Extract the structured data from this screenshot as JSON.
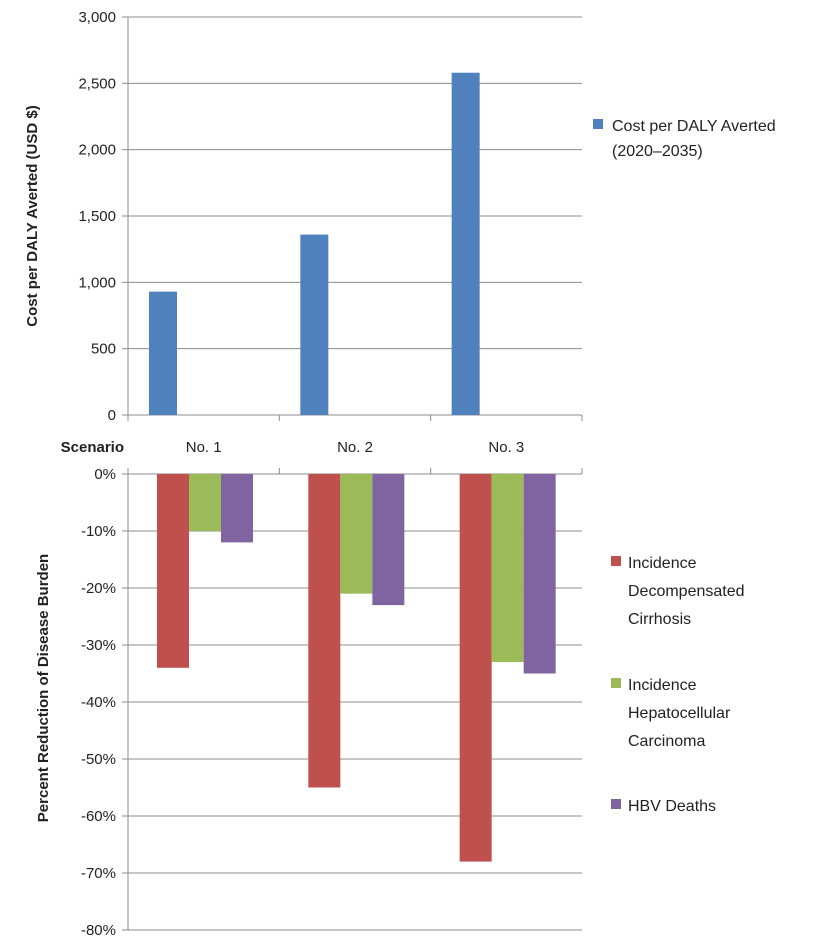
{
  "chart_data": [
    {
      "type": "bar",
      "scenario_label": "Scenario",
      "categories": [
        "No. 1",
        "No. 2",
        "No. 3"
      ],
      "ylabel": "Cost per DALY Averted (USD $)",
      "ylim": [
        0,
        3000
      ],
      "yticks": [
        0,
        500,
        1000,
        1500,
        2000,
        2500,
        3000
      ],
      "ytick_labels": [
        "0",
        "500",
        "1,000",
        "1,500",
        "2,000",
        "2,500",
        "3,000"
      ],
      "grid": true,
      "legend": "right",
      "series": [
        {
          "name": "Cost per DALY Averted (2020–2035)",
          "legend_lines": [
            "Cost per DALY Averted",
            "(2020–2035)"
          ],
          "color": "#4F81BD",
          "values": [
            930,
            1360,
            2580
          ]
        }
      ]
    },
    {
      "type": "bar",
      "categories": [
        "No. 1",
        "No. 2",
        "No. 3"
      ],
      "ylabel": "Percent Reduction of Disease Burden",
      "ylim": [
        -80,
        0
      ],
      "yticks": [
        0,
        -10,
        -20,
        -30,
        -40,
        -50,
        -60,
        -70,
        -80
      ],
      "ytick_labels": [
        "0%",
        "-10%",
        "-20%",
        "-30%",
        "-40%",
        "-50%",
        "-60%",
        "-70%",
        "-80%"
      ],
      "grid": true,
      "legend": "right",
      "series": [
        {
          "name": "Incidence Decompensated Cirrhosis",
          "legend_lines": [
            "Incidence",
            "Decompensated",
            "Cirrhosis"
          ],
          "color": "#C0504D",
          "values": [
            -34,
            -55,
            -68
          ]
        },
        {
          "name": "Incidence Hepatocellular Carcinoma",
          "legend_lines": [
            "Incidence",
            "Hepatocellular",
            "Carcinoma"
          ],
          "color": "#9BBB59",
          "values": [
            -10,
            -21,
            -33
          ]
        },
        {
          "name": "HBV Deaths",
          "legend_lines": [
            "HBV Deaths"
          ],
          "color": "#8064A2",
          "values": [
            -12,
            -23,
            -35
          ]
        }
      ]
    }
  ]
}
